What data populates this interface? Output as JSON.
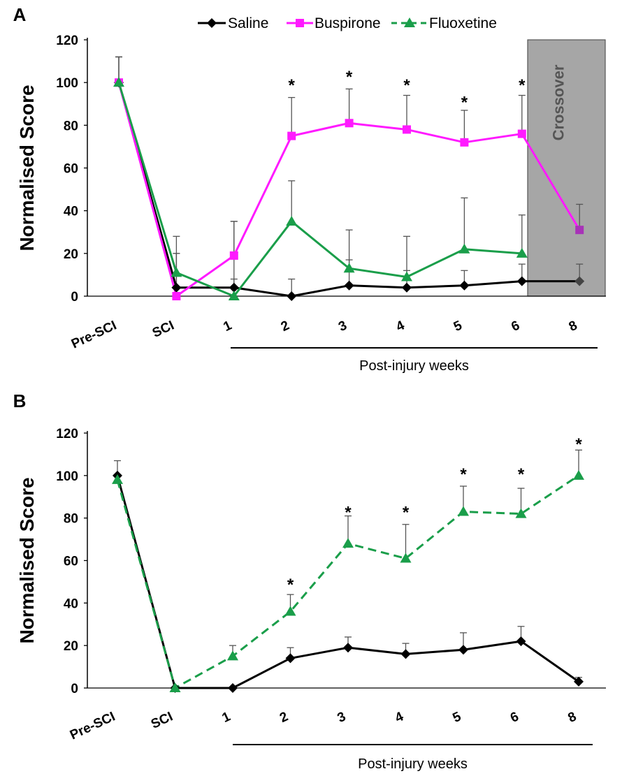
{
  "chart_data": [
    {
      "panel": "A",
      "type": "line",
      "ylabel": "Normalised Score",
      "xlabel": "Post-injury weeks",
      "ylim": [
        0,
        120
      ],
      "yticks": [
        0,
        20,
        40,
        60,
        80,
        100,
        120
      ],
      "categories": [
        "Pre-SCI",
        "SCI",
        "1",
        "2",
        "3",
        "4",
        "5",
        "6",
        "8"
      ],
      "legend": {
        "placement": "top"
      },
      "crossover": {
        "label": "Crossover",
        "from_category": "6",
        "to_category": "8"
      },
      "series": [
        {
          "name": "Saline",
          "color": "#000000",
          "marker": "diamond",
          "dash": "solid",
          "values": [
            100,
            4,
            4,
            0,
            5,
            4,
            5,
            7,
            7
          ],
          "errors": [
            12,
            16,
            4,
            8,
            12,
            8,
            7,
            8,
            8
          ]
        },
        {
          "name": "Buspirone",
          "color": "#ff1aff",
          "marker": "square",
          "dash": "solid",
          "values": [
            100,
            0,
            19,
            75,
            81,
            78,
            72,
            76,
            31
          ],
          "errors": [
            12,
            20,
            16,
            18,
            16,
            16,
            15,
            18,
            12
          ]
        },
        {
          "name": "Fluoxetine",
          "color": "#1a9e4a",
          "marker": "triangle",
          "dash": "dashed",
          "line_dash": "solid",
          "values": [
            100,
            11,
            0,
            35,
            13,
            9,
            22,
            20,
            null
          ],
          "errors": [
            12,
            17,
            35,
            19,
            18,
            19,
            24,
            18,
            null
          ]
        }
      ],
      "significance": {
        "marker": "*",
        "categories": [
          "2",
          "3",
          "4",
          "5",
          "6"
        ],
        "y": [
          100,
          104,
          100,
          92,
          100
        ]
      }
    },
    {
      "panel": "B",
      "type": "line",
      "ylabel": "Normalised Score",
      "xlabel": "Post-injury weeks",
      "ylim": [
        0,
        120
      ],
      "yticks": [
        0,
        20,
        40,
        60,
        80,
        100,
        120
      ],
      "categories": [
        "Pre-SCI",
        "SCI",
        "1",
        "2",
        "3",
        "4",
        "5",
        "6",
        "8"
      ],
      "series": [
        {
          "name": "Saline",
          "color": "#000000",
          "marker": "diamond",
          "dash": "solid",
          "values": [
            100,
            0,
            0,
            14,
            19,
            16,
            18,
            22,
            3
          ],
          "errors": [
            7,
            0,
            0,
            5,
            5,
            5,
            8,
            7,
            2
          ]
        },
        {
          "name": "Fluoxetine",
          "color": "#1a9e4a",
          "marker": "triangle",
          "dash": "dashed",
          "values": [
            98,
            0,
            15,
            36,
            68,
            61,
            83,
            82,
            100
          ],
          "errors": [
            0,
            0,
            5,
            8,
            13,
            16,
            12,
            12,
            12
          ]
        }
      ],
      "significance": {
        "marker": "*",
        "categories": [
          "2",
          "3",
          "4",
          "5",
          "6",
          "8"
        ],
        "y": [
          50,
          84,
          84,
          102,
          102,
          116
        ]
      }
    }
  ]
}
